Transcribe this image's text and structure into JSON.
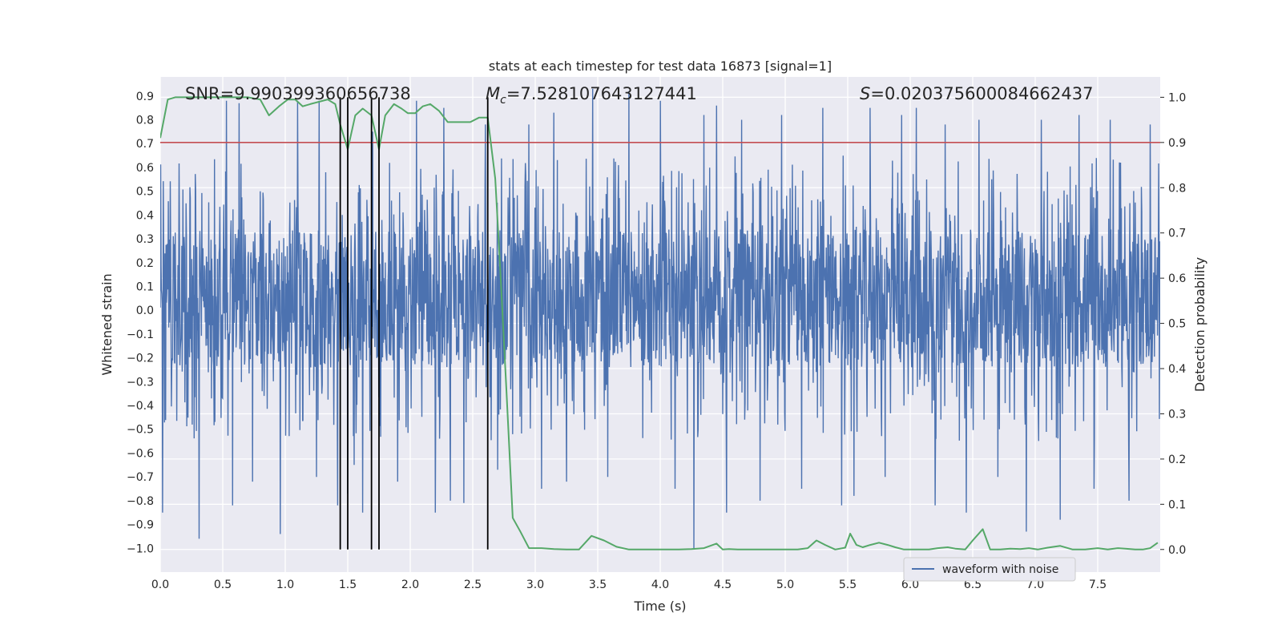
{
  "chart_data": {
    "type": "line",
    "title": "stats at each timestep for test data 16873 [signal=1]",
    "xlabel": "Time (s)",
    "ylabel_left": "Whitened strain",
    "ylabel_right": "Detection probability",
    "xlim": [
      0,
      8
    ],
    "ylim_left": [
      -1.1,
      0.98
    ],
    "ylim_right": [
      -0.05,
      1.045
    ],
    "xticks": [
      "0.0",
      "0.5",
      "1.0",
      "1.5",
      "2.0",
      "2.5",
      "3.0",
      "3.5",
      "4.0",
      "4.5",
      "5.0",
      "5.5",
      "6.0",
      "6.5",
      "7.0",
      "7.5"
    ],
    "yticks_left": [
      "0.9",
      "0.8",
      "0.7",
      "0.6",
      "0.5",
      "0.4",
      "0.3",
      "0.2",
      "0.1",
      "0.0",
      "−0.1",
      "−0.2",
      "−0.3",
      "−0.4",
      "−0.5",
      "−0.6",
      "−0.7",
      "−0.8",
      "−0.9",
      "−1.0"
    ],
    "yticks_right": [
      "1.0",
      "0.9",
      "0.8",
      "0.7",
      "0.6",
      "0.5",
      "0.4",
      "0.3",
      "0.2",
      "0.1",
      "0.0"
    ],
    "annotations": {
      "snr": "SNR=9.990399360656738",
      "mc_symbol": "M",
      "mc_sub": "c",
      "mc_value": "=7.528107643127441",
      "s_symbol": "S",
      "s_value": "=0.020375600084662437"
    },
    "threshold_probability": 0.9,
    "vertical_lines_s": [
      1.44,
      1.5,
      1.69,
      1.75,
      2.62
    ],
    "series": [
      {
        "name": "waveform with noise",
        "axis": "left",
        "description": "noisy whitened strain, approx. uniform noise between -0.45 and 0.55 with spikes",
        "spike_time_s": [
          0.02,
          0.31,
          0.53,
          0.58,
          0.63,
          0.74,
          0.96,
          1.1,
          1.25,
          1.27,
          1.42,
          1.5,
          1.55,
          1.62,
          1.7,
          1.9,
          2.05,
          2.2,
          2.27,
          2.32,
          2.43,
          2.6,
          2.7,
          2.95,
          3.05,
          3.15,
          3.25,
          3.46,
          3.58,
          3.75,
          4.0,
          4.12,
          4.27,
          4.35,
          4.45,
          4.53,
          4.65,
          4.8,
          4.97,
          5.13,
          5.3,
          5.45,
          5.55,
          5.68,
          5.8,
          5.93,
          6.05,
          6.2,
          6.28,
          6.45,
          6.55,
          6.7,
          6.93,
          7.05,
          7.2,
          7.35,
          7.47,
          7.6,
          7.75,
          7.92
        ],
        "spike_value": [
          -0.85,
          -0.96,
          0.88,
          -0.82,
          0.87,
          -0.72,
          -0.94,
          0.88,
          -0.7,
          0.88,
          -0.82,
          -0.77,
          -0.65,
          -0.85,
          0.75,
          -0.72,
          0.88,
          -0.85,
          0.85,
          -0.8,
          -0.81,
          0.78,
          -0.67,
          0.78,
          -0.75,
          0.83,
          -0.72,
          0.93,
          -0.7,
          0.92,
          0.88,
          -0.75,
          -1.0,
          0.82,
          0.86,
          -0.85,
          0.8,
          -0.8,
          0.82,
          -0.75,
          0.85,
          -0.82,
          -0.78,
          0.85,
          -0.7,
          0.82,
          0.85,
          -0.82,
          0.78,
          -0.85,
          0.8,
          -0.7,
          -0.93,
          0.8,
          -0.88,
          0.82,
          -0.75,
          0.8,
          -0.8,
          0.78
        ]
      },
      {
        "name": "detection probability",
        "axis": "right",
        "x": [
          0.0,
          0.06,
          0.12,
          0.2,
          0.3,
          0.4,
          0.5,
          0.6,
          0.7,
          0.8,
          0.87,
          0.95,
          1.02,
          1.08,
          1.14,
          1.2,
          1.27,
          1.34,
          1.4,
          1.44,
          1.5,
          1.56,
          1.62,
          1.69,
          1.75,
          1.8,
          1.87,
          1.93,
          1.98,
          2.04,
          2.1,
          2.16,
          2.23,
          2.3,
          2.36,
          2.42,
          2.48,
          2.55,
          2.62,
          2.68,
          2.72,
          2.77,
          2.82,
          2.88,
          2.95,
          3.05,
          3.15,
          3.25,
          3.35,
          3.45,
          3.55,
          3.65,
          3.75,
          3.85,
          3.95,
          4.05,
          4.15,
          4.25,
          4.35,
          4.45,
          4.5,
          4.55,
          4.62,
          4.7,
          4.8,
          4.9,
          5.0,
          5.1,
          5.18,
          5.25,
          5.32,
          5.4,
          5.48,
          5.52,
          5.57,
          5.62,
          5.68,
          5.75,
          5.82,
          5.88,
          5.95,
          6.05,
          6.15,
          6.22,
          6.3,
          6.36,
          6.44,
          6.5,
          6.58,
          6.64,
          6.72,
          6.8,
          6.88,
          6.95,
          7.02,
          7.1,
          7.2,
          7.3,
          7.4,
          7.5,
          7.58,
          7.66,
          7.72,
          7.8,
          7.86,
          7.92,
          7.98
        ],
        "y": [
          0.91,
          0.995,
          1.0,
          1.0,
          1.0,
          1.0,
          1.0,
          1.0,
          1.0,
          0.995,
          0.96,
          0.98,
          0.995,
          0.995,
          0.98,
          0.985,
          0.99,
          0.995,
          0.985,
          0.94,
          0.885,
          0.96,
          0.975,
          0.96,
          0.885,
          0.96,
          0.985,
          0.975,
          0.965,
          0.965,
          0.98,
          0.985,
          0.97,
          0.945,
          0.945,
          0.945,
          0.945,
          0.955,
          0.955,
          0.82,
          0.62,
          0.35,
          0.07,
          0.04,
          0.003,
          0.003,
          0.001,
          0.0,
          0.0,
          0.03,
          0.02,
          0.006,
          0.0,
          0.0,
          0.0,
          0.0,
          0.0,
          0.001,
          0.003,
          0.013,
          0.0,
          0.001,
          0.0,
          0.0,
          0.0,
          0.0,
          0.0,
          0.0,
          0.003,
          0.02,
          0.01,
          0.0,
          0.004,
          0.035,
          0.01,
          0.005,
          0.01,
          0.015,
          0.01,
          0.005,
          0.0,
          0.0,
          0.0,
          0.003,
          0.005,
          0.002,
          0.0,
          0.02,
          0.045,
          0.0,
          0.0,
          0.002,
          0.001,
          0.003,
          0.0,
          0.004,
          0.008,
          0.0,
          0.0,
          0.003,
          0.0,
          0.003,
          0.002,
          0.0,
          0.0,
          0.003,
          0.015
        ]
      }
    ],
    "legend": {
      "label": "waveform with noise",
      "placement": "lower-right"
    },
    "grid": true,
    "colors": {
      "strain": "#4c72b0",
      "probability": "#55a868",
      "threshold": "#c44e52",
      "vline": "#000000",
      "axes_bg": "#eaeaf2",
      "grid": "#ffffff"
    }
  }
}
